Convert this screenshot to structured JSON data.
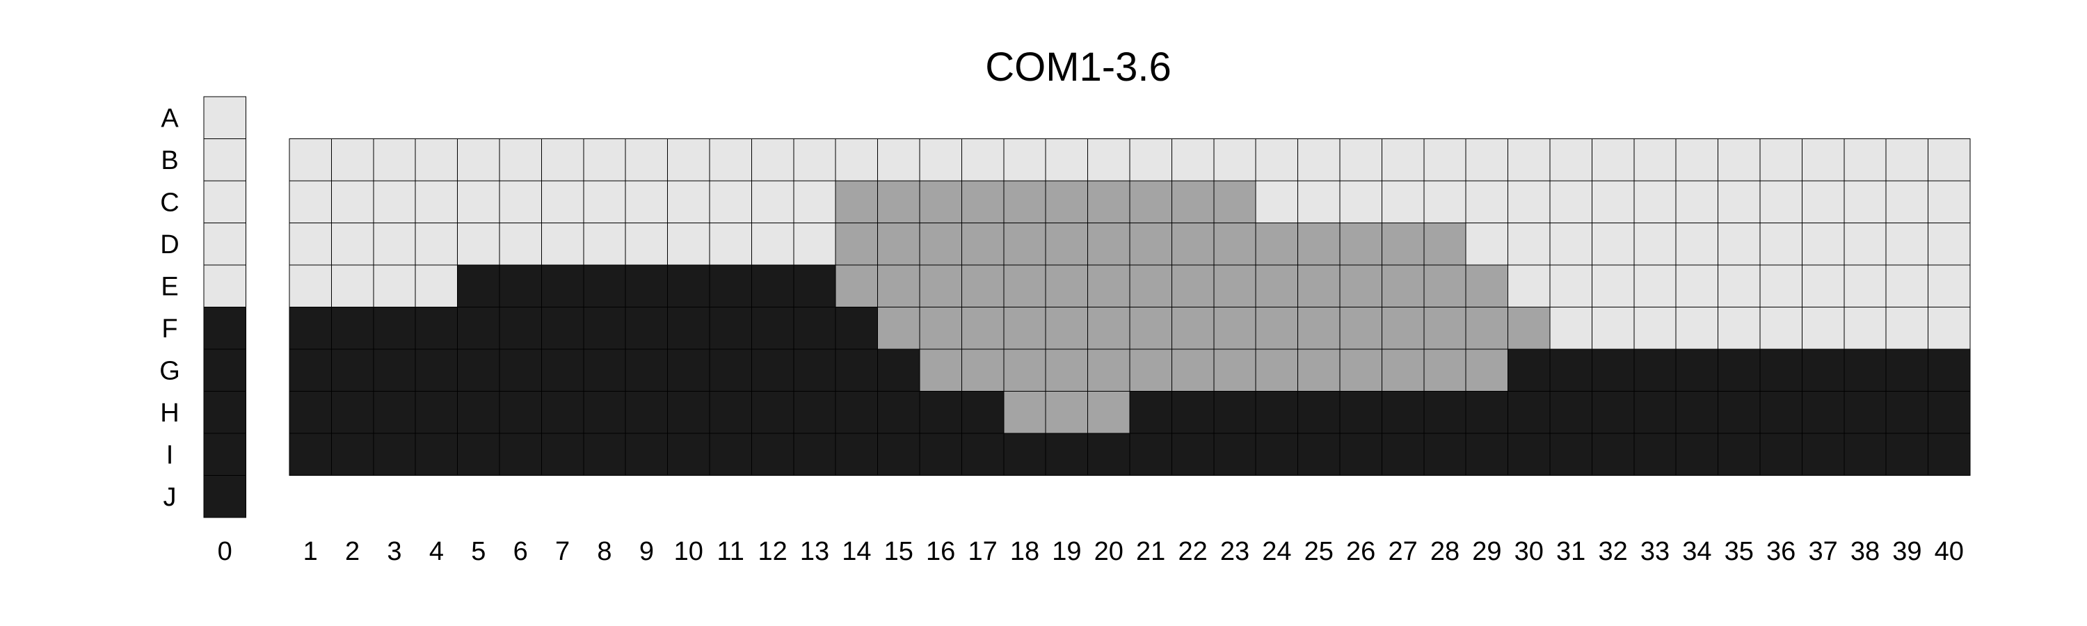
{
  "chart_data": {
    "type": "heatmap",
    "title": "COM1-3.6",
    "xlabel": "",
    "ylabel": "",
    "grid": true,
    "legend": "none",
    "rows": [
      "A",
      "B",
      "C",
      "D",
      "E",
      "F",
      "G",
      "H",
      "I",
      "J"
    ],
    "reference_column": {
      "label": "0",
      "cells": [
        "light",
        "light",
        "light",
        "light",
        "light",
        "dark",
        "dark",
        "dark",
        "dark",
        "dark"
      ]
    },
    "columns": [
      "1",
      "2",
      "3",
      "4",
      "5",
      "6",
      "7",
      "8",
      "9",
      "10",
      "11",
      "12",
      "13",
      "14",
      "15",
      "16",
      "17",
      "18",
      "19",
      "20",
      "21",
      "22",
      "23",
      "24",
      "25",
      "26",
      "27",
      "28",
      "29",
      "30",
      "31",
      "32",
      "33",
      "34",
      "35",
      "36",
      "37",
      "38",
      "39",
      "40"
    ],
    "grid_rows": [
      "B",
      "C",
      "D",
      "E",
      "F",
      "G",
      "H",
      "I"
    ],
    "cell_codes": {
      "L": "light",
      "M": "mid",
      "D": "dark"
    },
    "grid_cells": [
      "LLLLLLLLLLLLLLLLLLLLLLLLLLLLLLLLLLLLLLLL",
      "LLLLLLLLLLLLLMMMMMMMMMMLLLLLLLLLLLLLLLLL",
      "LLLLLLLLLLLLLMMMMMMMMMMMMMMMLLLLLLLLLLLL",
      "LLLLDDDDDDDDDMMMMMMMMMMMMMMMMLLLLLLLLLLL",
      "DDDDDDDDDDDDDDMMMMMMMMMMMMMMMMLLLLLLLLLL",
      "DDDDDDDDDDDDDDDMMMMMMMMMMMMMMDDDDDDDDDDD",
      "DDDDDDDDDDDDDDDDDMMMDDDDDDDDDDDDDDDDDDDD",
      "DDDDDDDDDDDDDDDDDDDDDDDDDDDDDDDDDDDDDDDD"
    ],
    "colors": {
      "light": "#e6e6e6",
      "mid": "#a4a4a4",
      "dark": "#1a1a1a"
    }
  }
}
